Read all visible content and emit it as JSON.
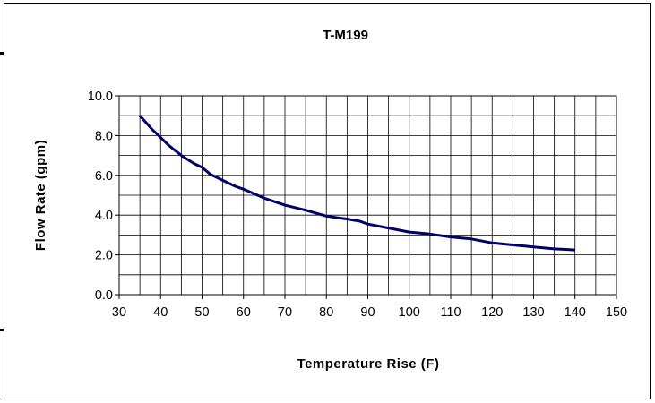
{
  "chart_data": {
    "type": "line",
    "title": "T-M199",
    "xlabel": "Temperature Rise (F)",
    "ylabel": "Flow Rate (gpm)",
    "xlim": [
      30,
      150
    ],
    "ylim": [
      0,
      10
    ],
    "x_ticks": [
      "30",
      "40",
      "50",
      "60",
      "70",
      "80",
      "90",
      "100",
      "110",
      "120",
      "130",
      "140",
      "150"
    ],
    "y_ticks": [
      "0.0",
      "2.0",
      "4.0",
      "6.0",
      "8.0",
      "10.0"
    ],
    "grid": true,
    "legend": "none",
    "line_color": "#000066",
    "series": [
      {
        "x": [
          35,
          38,
          40,
          42,
          45,
          48,
          50,
          52,
          55,
          58,
          60,
          65,
          70,
          75,
          80,
          85,
          88,
          90,
          95,
          100,
          105,
          110,
          115,
          120,
          125,
          130,
          135,
          140
        ],
        "values": [
          9.0,
          8.3,
          7.9,
          7.5,
          7.0,
          6.6,
          6.4,
          6.05,
          5.75,
          5.45,
          5.3,
          4.85,
          4.5,
          4.25,
          3.95,
          3.8,
          3.7,
          3.55,
          3.35,
          3.15,
          3.05,
          2.9,
          2.8,
          2.6,
          2.5,
          2.4,
          2.3,
          2.25
        ]
      }
    ]
  }
}
